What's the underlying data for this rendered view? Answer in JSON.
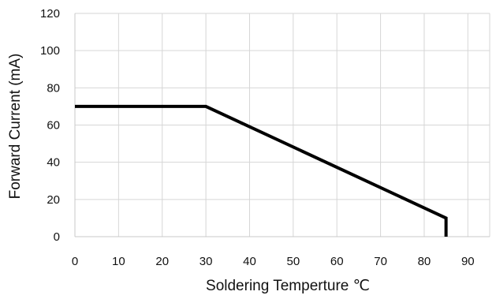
{
  "chart_data": {
    "type": "line",
    "title": "",
    "xlabel": "Soldering Temperture ℃",
    "ylabel": "Forward Current (mA)",
    "xlim": [
      0,
      95
    ],
    "ylim": [
      0,
      120
    ],
    "x_ticks": [
      0,
      10,
      20,
      30,
      40,
      50,
      60,
      70,
      80,
      90
    ],
    "y_ticks": [
      0,
      20,
      40,
      60,
      80,
      100,
      120
    ],
    "grid": true,
    "legend": "none",
    "line_color": "#000000",
    "series": [
      {
        "x": [
          0,
          30,
          85,
          85
        ],
        "y": [
          70,
          70,
          10,
          0
        ]
      }
    ]
  }
}
